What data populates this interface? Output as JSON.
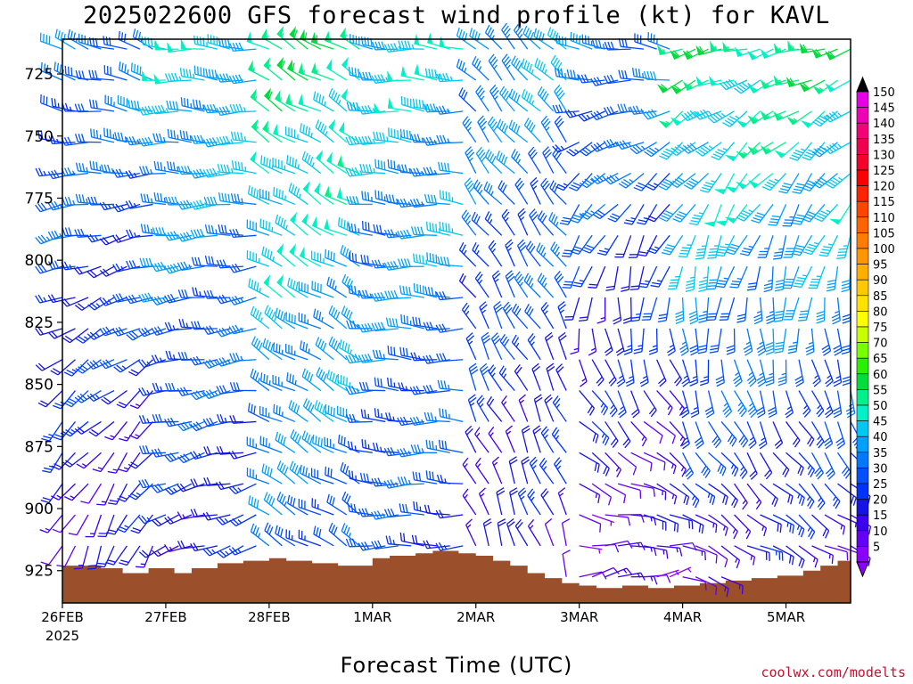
{
  "title": "2025022600 GFS forecast wind profile (kt) for KAVL",
  "xaxis_title": "Forecast Time (UTC)",
  "credit": "coolwx.com/modelts",
  "colors": {
    "terrain": "#9b4f2b",
    "axis": "#000000"
  },
  "chart_data": {
    "type": "wind-barb-profile",
    "title": "2025022600 GFS forecast wind profile (kt) for KAVL",
    "xlabel": "Forecast Time (UTC)",
    "ylabel": "",
    "y_axis": {
      "reversed": true,
      "range": [
        938,
        711
      ],
      "ticks": [
        725,
        750,
        775,
        800,
        825,
        850,
        875,
        900,
        925
      ],
      "tick_labels": [
        "725",
        "750",
        "775",
        "800",
        "825",
        "850",
        "875",
        "900",
        "925"
      ]
    },
    "x_axis": {
      "range_hours": [
        0,
        183
      ],
      "ticks": [
        {
          "label": "26FEB",
          "sub": "2025",
          "hour": 0
        },
        {
          "label": "27FEB",
          "hour": 24
        },
        {
          "label": "28FEB",
          "hour": 48
        },
        {
          "label": "1MAR",
          "hour": 72
        },
        {
          "label": "2MAR",
          "hour": 96
        },
        {
          "label": "3MAR",
          "hour": 120
        },
        {
          "label": "4MAR",
          "hour": 144
        },
        {
          "label": "5MAR",
          "hour": 168
        }
      ]
    },
    "colorbar": {
      "units": "kt",
      "labels": [
        "150",
        "145",
        "140",
        "135",
        "130",
        "125",
        "120",
        "115",
        "110",
        "105",
        "100",
        "95",
        "90",
        "85",
        "80",
        "75",
        "70",
        "65",
        "60",
        "55",
        "50",
        "45",
        "40",
        "35",
        "30",
        "25",
        "20",
        "15",
        "10",
        "5"
      ],
      "colors": [
        "#e600e6",
        "#f000b4",
        "#f5007a",
        "#f20050",
        "#f50028",
        "#fa0000",
        "#ff2300",
        "#ff4600",
        "#ff6400",
        "#ff7d00",
        "#ff9600",
        "#ffaf00",
        "#ffc800",
        "#ffe100",
        "#ffff00",
        "#c8ff00",
        "#78ff00",
        "#28f000",
        "#00dc3c",
        "#00f08c",
        "#00f0c8",
        "#00c8f0",
        "#00a0ff",
        "#0078ff",
        "#0050ff",
        "#0032ff",
        "#1414e6",
        "#3c00f0",
        "#6400f5",
        "#8c00ff"
      ]
    },
    "terrain_pressure": [
      {
        "hour": 0,
        "p": 923
      },
      {
        "hour": 5,
        "p": 923
      },
      {
        "hour": 9,
        "p": 924
      },
      {
        "hour": 14,
        "p": 926
      },
      {
        "hour": 20,
        "p": 924
      },
      {
        "hour": 26,
        "p": 926
      },
      {
        "hour": 30,
        "p": 924
      },
      {
        "hour": 36,
        "p": 922
      },
      {
        "hour": 42,
        "p": 921
      },
      {
        "hour": 48,
        "p": 920
      },
      {
        "hour": 52,
        "p": 921
      },
      {
        "hour": 58,
        "p": 922
      },
      {
        "hour": 64,
        "p": 923
      },
      {
        "hour": 68,
        "p": 923
      },
      {
        "hour": 72,
        "p": 920
      },
      {
        "hour": 76,
        "p": 919
      },
      {
        "hour": 82,
        "p": 918
      },
      {
        "hour": 86,
        "p": 917
      },
      {
        "hour": 92,
        "p": 918
      },
      {
        "hour": 96,
        "p": 919
      },
      {
        "hour": 100,
        "p": 921
      },
      {
        "hour": 104,
        "p": 923
      },
      {
        "hour": 108,
        "p": 926
      },
      {
        "hour": 112,
        "p": 928
      },
      {
        "hour": 116,
        "p": 930
      },
      {
        "hour": 120,
        "p": 931
      },
      {
        "hour": 124,
        "p": 932
      },
      {
        "hour": 130,
        "p": 931
      },
      {
        "hour": 136,
        "p": 932
      },
      {
        "hour": 142,
        "p": 931
      },
      {
        "hour": 148,
        "p": 930
      },
      {
        "hour": 154,
        "p": 929
      },
      {
        "hour": 160,
        "p": 928
      },
      {
        "hour": 166,
        "p": 927
      },
      {
        "hour": 172,
        "p": 925
      },
      {
        "hour": 176,
        "p": 923
      },
      {
        "hour": 180,
        "p": 921
      },
      {
        "hour": 183,
        "p": 921
      }
    ],
    "barb_regimes": [
      {
        "hours": [
          0,
          24
        ],
        "dir_top": 290,
        "dir_bottom": 200,
        "spd_top": 35,
        "spd_bottom": 15
      },
      {
        "hours": [
          24,
          48
        ],
        "dir_top": 275,
        "dir_bottom": 250,
        "spd_top": 45,
        "spd_bottom": 20
      },
      {
        "hours": [
          48,
          72
        ],
        "dir_top": 300,
        "dir_bottom": 300,
        "spd_top": 55,
        "spd_bottom": 30
      },
      {
        "hours": [
          72,
          96
        ],
        "dir_top": 275,
        "dir_bottom": 270,
        "spd_top": 45,
        "spd_bottom": 25
      },
      {
        "hours": [
          96,
          120
        ],
        "dir_top": 315,
        "dir_bottom": 340,
        "spd_top": 40,
        "spd_bottom": 15
      },
      {
        "hours": [
          120,
          144
        ],
        "dir_top": 280,
        "dir_bottom": 80,
        "spd_top": 35,
        "spd_bottom": 10
      },
      {
        "hours": [
          144,
          183
        ],
        "dir_top": 255,
        "dir_bottom": 110,
        "spd_top": 55,
        "spd_bottom": 15
      }
    ]
  }
}
